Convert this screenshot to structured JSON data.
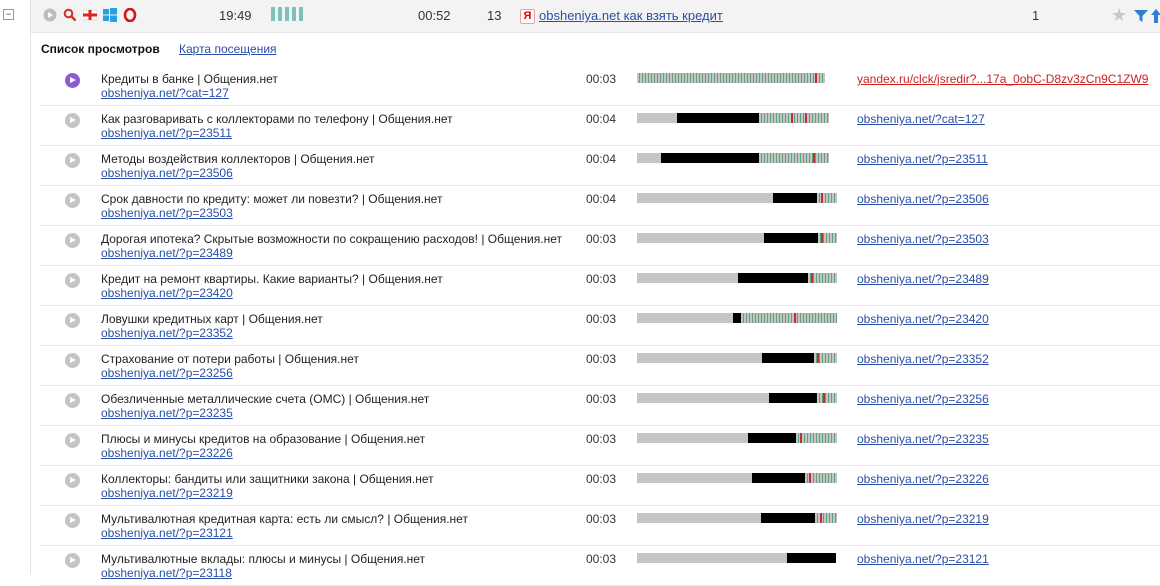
{
  "top": {
    "time": "19:49",
    "duration": "00:52",
    "views": "13",
    "ya_badge": "Я",
    "link": "obsheniya.net как взять кредит",
    "count": "1",
    "icons": [
      "play-circle-icon",
      "search-icon",
      "flag-icon",
      "windows-icon",
      "opera-icon",
      "star-icon",
      "filter-icon",
      "arrow-icon"
    ],
    "signal_bars": 5
  },
  "header": {
    "title": "Список просмотров",
    "map_link": "Карта посещения"
  },
  "colors": {
    "link": "#2a4ea8",
    "active_play": "#8e5bd6",
    "signal": "#7fbfbe",
    "red_link": "#cc2222"
  },
  "rows": [
    {
      "title": "Кредиты в банке | Общения.нет",
      "url": "obsheniya.net/?cat=127",
      "duration": "00:03",
      "referrer": "yandex.ru/clck/jsredir?...17a_0obC-D8zv3zCn9C1ZW9",
      "active": true
    },
    {
      "title": "Как разговаривать с коллекторами по телефону | Общения.нет",
      "url": "obsheniya.net/?p=23511",
      "duration": "00:04",
      "referrer": "obsheniya.net/?cat=127"
    },
    {
      "title": "Методы воздействия коллекторов | Общения.нет",
      "url": "obsheniya.net/?p=23506",
      "duration": "00:04",
      "referrer": "obsheniya.net/?p=23511"
    },
    {
      "title": "Срок давности по кредиту: может ли повезти? | Общения.нет",
      "url": "obsheniya.net/?p=23503",
      "duration": "00:04",
      "referrer": "obsheniya.net/?p=23506"
    },
    {
      "title": "Дорогая ипотека? Скрытые возможности по сокращению расходов! | Общения.нет",
      "url": "obsheniya.net/?p=23489",
      "duration": "00:03",
      "referrer": "obsheniya.net/?p=23503"
    },
    {
      "title": "Кредит на ремонт квартиры. Какие варианты? | Общения.нет",
      "url": "obsheniya.net/?p=23420",
      "duration": "00:03",
      "referrer": "obsheniya.net/?p=23489"
    },
    {
      "title": "Ловушки кредитных карт | Общения.нет",
      "url": "obsheniya.net/?p=23352",
      "duration": "00:03",
      "referrer": "obsheniya.net/?p=23420"
    },
    {
      "title": "Страхование от потери работы | Общения.нет",
      "url": "obsheniya.net/?p=23256",
      "duration": "00:03",
      "referrer": "obsheniya.net/?p=23352"
    },
    {
      "title": "Обезличенные металлические счета (ОМС) | Общения.нет",
      "url": "obsheniya.net/?p=23235",
      "duration": "00:03",
      "referrer": "obsheniya.net/?p=23256"
    },
    {
      "title": "Плюсы и минусы кредитов на образование | Общения.нет",
      "url": "obsheniya.net/?p=23226",
      "duration": "00:03",
      "referrer": "obsheniya.net/?p=23235"
    },
    {
      "title": "Коллекторы: бандиты или защитники закона | Общения.нет",
      "url": "obsheniya.net/?p=23219",
      "duration": "00:03",
      "referrer": "obsheniya.net/?p=23226"
    },
    {
      "title": "Мультивалютная кредитная карта: есть ли смысл? | Общения.нет",
      "url": "obsheniya.net/?p=23121",
      "duration": "00:03",
      "referrer": "obsheniya.net/?p=23219"
    },
    {
      "title": "Мультивалютные вклады: плюсы и минусы | Общения.нет",
      "url": "obsheniya.net/?p=23118",
      "duration": "00:03",
      "referrer": "obsheniya.net/?p=23121"
    }
  ]
}
